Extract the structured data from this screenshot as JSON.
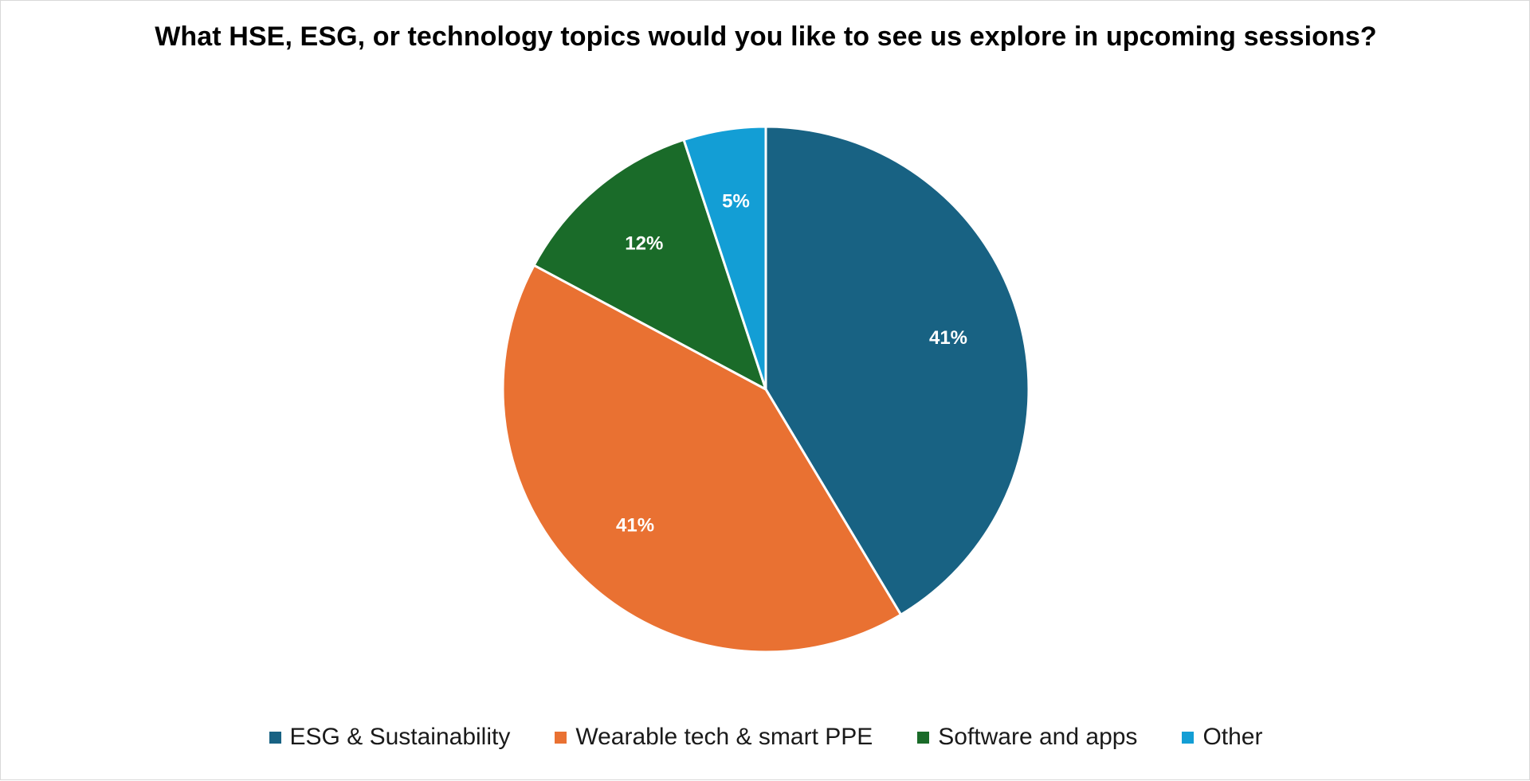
{
  "chart_data": {
    "type": "pie",
    "title": "What HSE, ESG, or technology topics would you like to see us explore in upcoming sessions?",
    "categories": [
      "ESG & Sustainability",
      "Wearable tech & smart PPE",
      "Software and apps",
      "Other"
    ],
    "values": [
      41,
      41,
      12,
      5
    ],
    "data_labels": [
      "41%",
      "41%",
      "12%",
      "5%"
    ],
    "colors": [
      "#186283",
      "#E97132",
      "#1A6B29",
      "#139ED5"
    ],
    "legend_position": "bottom",
    "start_angle": "12 o'clock",
    "direction": "clockwise"
  }
}
